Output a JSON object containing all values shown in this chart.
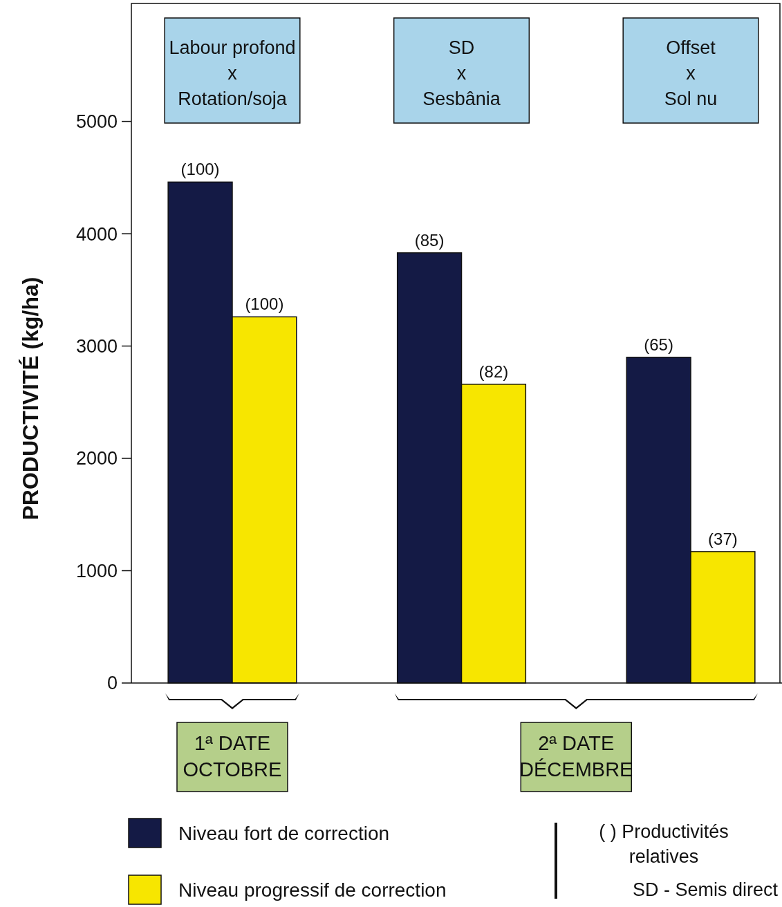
{
  "chart_data": {
    "type": "bar",
    "ylabel": "PRODUCTIVITÉ (kg/ha)",
    "categories": [
      "Labour profond\nx\nRotation/soja",
      "SD\nx\nSesbânia",
      "Offset\nx\nSol nu"
    ],
    "series": [
      {
        "name": "Niveau fort de correction",
        "color": "#141a45",
        "values": [
          4460,
          3830,
          2900
        ]
      },
      {
        "name": "Niveau progressif de correction",
        "color": "#f7e600",
        "values": [
          3260,
          2660,
          1170
        ]
      }
    ],
    "ylim": [
      0,
      6050
    ],
    "yticks": [
      0,
      1000,
      2000,
      3000,
      4000,
      5000
    ],
    "grid": false,
    "legend": "bottom",
    "annotations": [
      "1ª DATE\nOCTOBRE",
      "2ª DATE\nDÉCEMBRE",
      "( ) Productivités\nrelatives",
      "SD - Semis direct",
      {
        "text": "(100)",
        "x": "Labour profond\nx\nRotation/soja",
        "y": 4460
      },
      {
        "text": "(100)",
        "x": "Labour profond\nx\nRotation/soja",
        "y": 3260
      },
      {
        "text": "(85)",
        "x": "SD\nx\nSesbânia",
        "y": 3830
      },
      {
        "text": "(82)",
        "x": "SD\nx\nSesbânia",
        "y": 2660
      },
      {
        "text": "(65)",
        "x": "Offset\nx\nSol nu",
        "y": 2900
      },
      {
        "text": "(37)",
        "x": "Offset\nx\nSol nu",
        "y": 1170
      }
    ]
  }
}
